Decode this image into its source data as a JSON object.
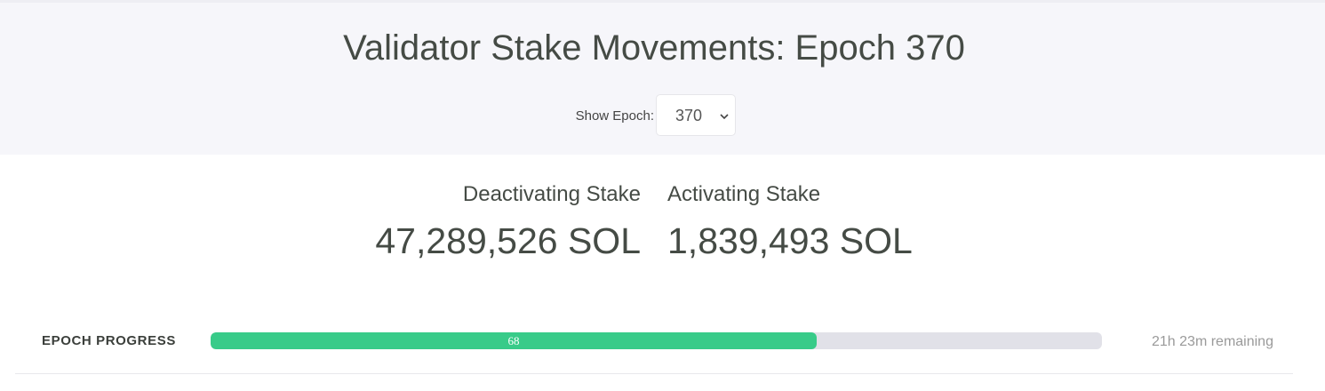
{
  "header": {
    "title": "Validator Stake Movements: Epoch 370",
    "epoch_label": "Show Epoch:",
    "epoch_select": "370"
  },
  "stats": [
    {
      "label": "Deactivating Stake",
      "value": "47,289,526 SOL"
    },
    {
      "label": "Activating Stake",
      "value": "1,839,493 SOL"
    }
  ],
  "progress": {
    "label": "EPOCH PROGRESS",
    "value": 68,
    "remaining": "21h 23m remaining"
  }
}
